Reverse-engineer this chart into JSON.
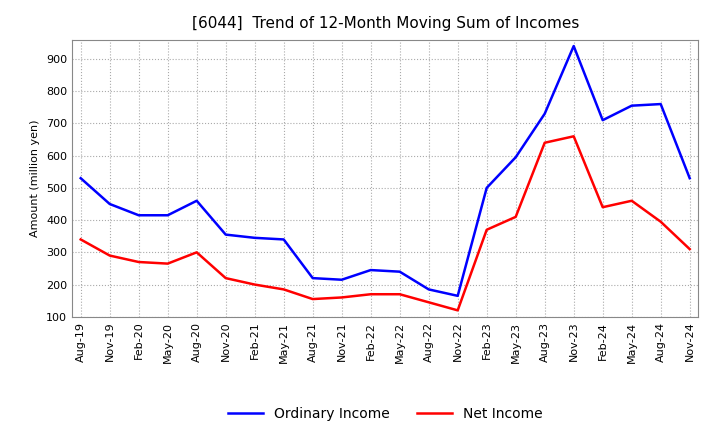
{
  "title": "[6044]  Trend of 12-Month Moving Sum of Incomes",
  "ylabel": "Amount (million yen)",
  "ylim": [
    100,
    960
  ],
  "yticks": [
    100,
    200,
    300,
    400,
    500,
    600,
    700,
    800,
    900
  ],
  "x_labels": [
    "Aug-19",
    "Nov-19",
    "Feb-20",
    "May-20",
    "Aug-20",
    "Nov-20",
    "Feb-21",
    "May-21",
    "Aug-21",
    "Nov-21",
    "Feb-22",
    "May-22",
    "Aug-22",
    "Nov-22",
    "Feb-23",
    "May-23",
    "Aug-23",
    "Nov-23",
    "Feb-24",
    "May-24",
    "Aug-24",
    "Nov-24"
  ],
  "ordinary_income": [
    530,
    450,
    415,
    415,
    460,
    355,
    345,
    340,
    220,
    215,
    245,
    240,
    185,
    165,
    500,
    595,
    730,
    940,
    710,
    755,
    760,
    530
  ],
  "net_income": [
    340,
    290,
    270,
    265,
    300,
    220,
    200,
    185,
    155,
    160,
    170,
    170,
    145,
    120,
    370,
    410,
    640,
    660,
    440,
    460,
    395,
    310
  ],
  "ordinary_color": "#0000FF",
  "net_color": "#FF0000",
  "grid_color": "#aaaaaa",
  "background_color": "#ffffff",
  "title_fontsize": 11,
  "label_fontsize": 8,
  "legend_fontsize": 10
}
